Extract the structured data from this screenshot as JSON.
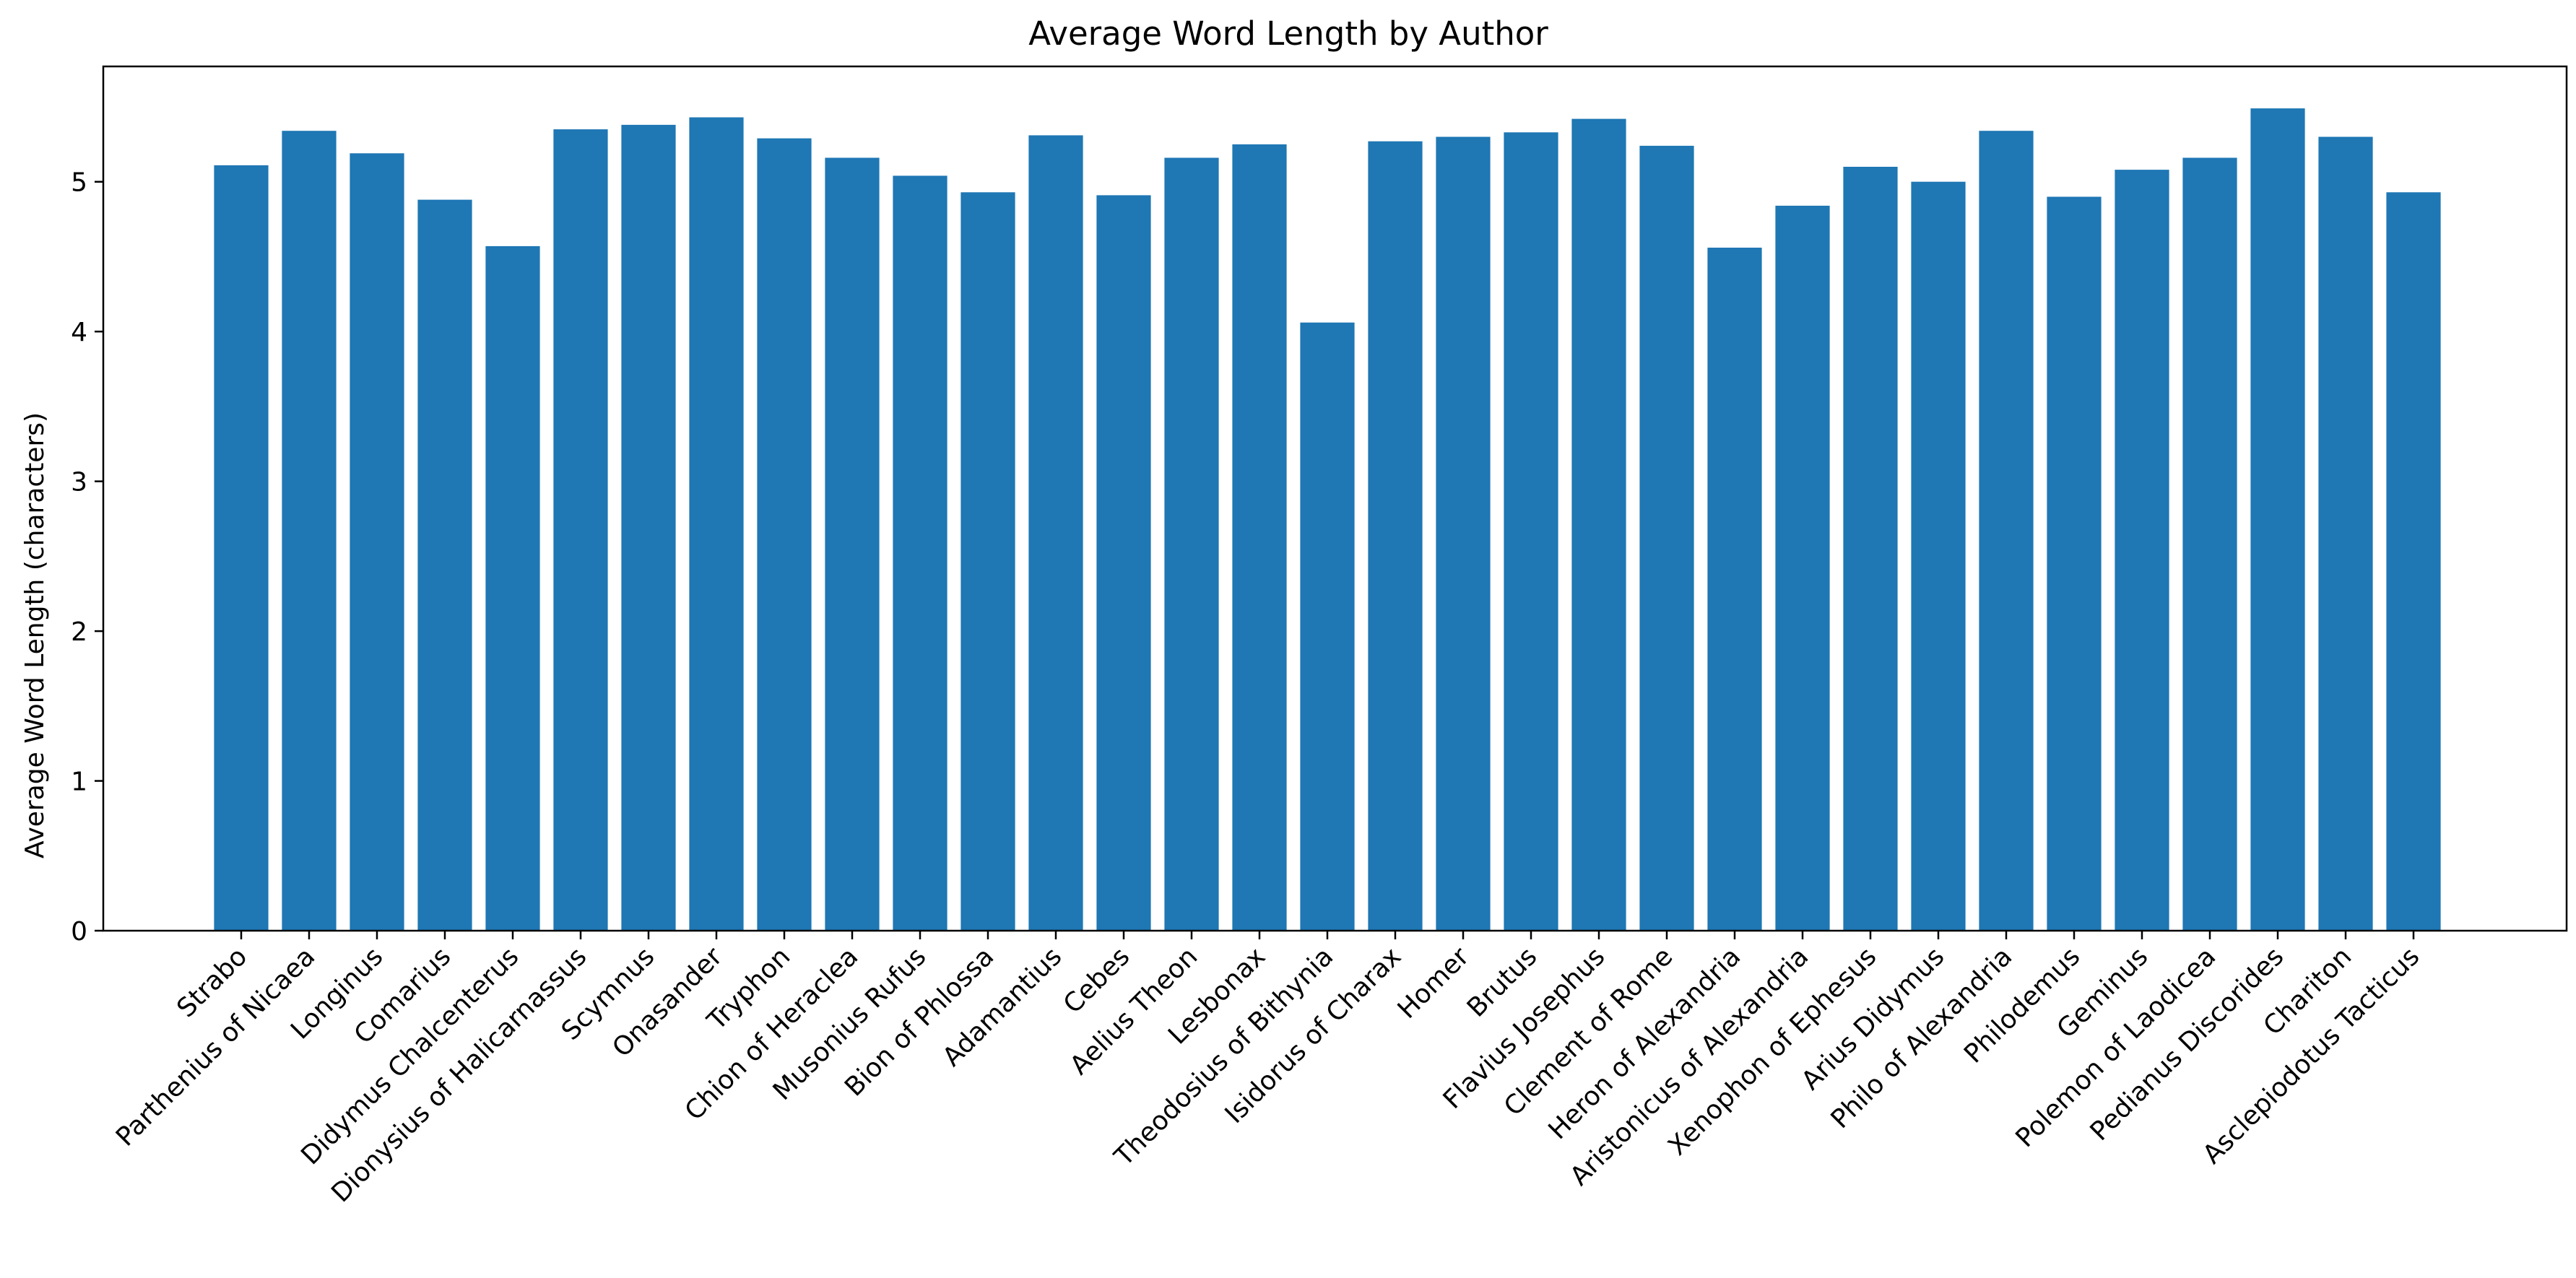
{
  "chart_data": {
    "type": "bar",
    "title": "Average Word Length by Author",
    "xlabel": "",
    "ylabel": "Average Word Length (characters)",
    "ylim": [
      0,
      5.77
    ],
    "yticks": [
      0,
      1,
      2,
      3,
      4,
      5
    ],
    "grid": false,
    "bar_color": "#1f77b4",
    "categories": [
      "Strabo",
      "Parthenius of Nicaea",
      "Longinus",
      "Comarius",
      "Didymus Chalcenterus",
      "Dionysius of Halicarnassus",
      "Scymnus",
      "Onasander",
      "Tryphon",
      "Chion of Heraclea",
      "Musonius Rufus",
      "Bion of Phlossa",
      "Adamantius",
      "Cebes",
      "Aelius Theon",
      "Lesbonax",
      "Theodosius of Bithynia",
      "Isidorus of Charax",
      "Homer",
      "Brutus",
      "Flavius Josephus",
      "Clement of Rome",
      "Heron of Alexandria",
      "Aristonicus of Alexandria",
      "Xenophon of Ephesus",
      "Arius Didymus",
      "Philo of Alexandria",
      "Philodemus",
      "Geminus",
      "Polemon of Laodicea",
      "Pedianus Discorides",
      "Chariton",
      "Asclepiodotus Tacticus"
    ],
    "values": [
      5.11,
      5.34,
      5.19,
      4.88,
      4.57,
      5.35,
      5.38,
      5.43,
      5.29,
      5.16,
      5.04,
      4.93,
      5.31,
      4.91,
      5.16,
      5.25,
      4.06,
      5.27,
      5.3,
      5.33,
      5.42,
      5.24,
      4.56,
      4.84,
      5.1,
      5.0,
      5.34,
      4.9,
      5.08,
      5.16,
      5.49,
      5.3,
      4.93
    ]
  }
}
